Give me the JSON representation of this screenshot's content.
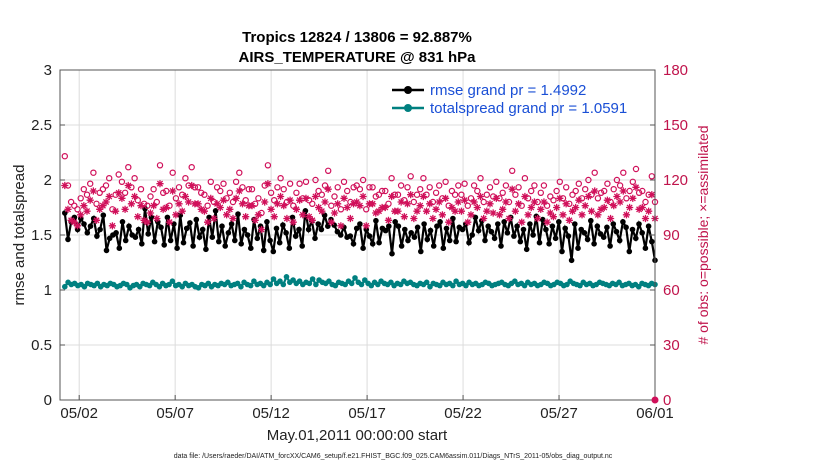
{
  "chart_data": {
    "type": "line",
    "title_line1": "Tropics 12824 / 13806 = 92.887%",
    "title_line2": "AIRS_TEMPERATURE @ 831 hPa",
    "xlabel": "May.01,2011 00:00:00 start",
    "ylabel_left": "rmse and totalspread",
    "ylabel_right": "# of obs: o=possible; ×=assimilated",
    "footnote": "data file: /Users/raeder/DAI/ATM_forcXX/CAM6_setup/f.e21.FHIST_BGC.f09_025.CAM6assim.011/Diags_NTrS_2011-05/obs_diag_output.nc",
    "x_range_days": [
      0,
      31
    ],
    "x_ticks": [
      {
        "day": 1,
        "label": "05/02"
      },
      {
        "day": 6,
        "label": "05/07"
      },
      {
        "day": 11,
        "label": "05/12"
      },
      {
        "day": 16,
        "label": "05/17"
      },
      {
        "day": 21,
        "label": "05/22"
      },
      {
        "day": 26,
        "label": "05/27"
      },
      {
        "day": 31,
        "label": "06/01"
      }
    ],
    "y_left_range": [
      0,
      3
    ],
    "y_left_ticks": [
      "0",
      "0.5",
      "1",
      "1.5",
      "2",
      "2.5",
      "3"
    ],
    "y_right_range": [
      0,
      180
    ],
    "y_right_ticks": [
      "0",
      "30",
      "60",
      "90",
      "120",
      "150",
      "180"
    ],
    "grid": true,
    "legend_position": "top-right",
    "series": [
      {
        "name": "rmse grand pr = 1.4992",
        "color": "#000000",
        "marker": "filled-circle",
        "axis": "left",
        "values": [
          1.7,
          1.46,
          1.62,
          1.66,
          1.55,
          1.65,
          1.6,
          1.52,
          1.58,
          1.65,
          1.49,
          1.55,
          1.68,
          1.36,
          1.47,
          1.5,
          1.52,
          1.38,
          1.62,
          1.45,
          1.58,
          1.5,
          1.48,
          1.55,
          1.42,
          1.74,
          1.51,
          1.66,
          1.44,
          1.62,
          1.57,
          1.41,
          1.66,
          1.45,
          1.6,
          1.38,
          1.68,
          1.43,
          1.56,
          1.61,
          1.4,
          1.64,
          1.48,
          1.55,
          1.37,
          1.66,
          1.48,
          1.72,
          1.44,
          1.58,
          1.4,
          1.52,
          1.6,
          1.45,
          1.69,
          1.42,
          1.55,
          1.5,
          1.38,
          1.64,
          1.47,
          1.58,
          1.36,
          1.62,
          1.45,
          1.35,
          1.56,
          1.43,
          1.59,
          1.52,
          1.38,
          1.66,
          1.49,
          1.55,
          1.4,
          1.72,
          1.55,
          1.63,
          1.47,
          1.6,
          1.55,
          1.68,
          1.58,
          1.64,
          1.59,
          1.53,
          1.5,
          1.57,
          1.48,
          1.49,
          1.42,
          1.56,
          1.6,
          1.38,
          1.55,
          1.49,
          1.42,
          1.63,
          1.43,
          1.56,
          1.54,
          1.58,
          1.33,
          1.62,
          1.58,
          1.4,
          1.55,
          1.45,
          1.52,
          1.48,
          1.57,
          1.35,
          1.6,
          1.46,
          1.54,
          1.4,
          1.58,
          1.62,
          1.38,
          1.56,
          1.45,
          1.65,
          1.44,
          1.57,
          1.55,
          1.6,
          1.43,
          1.5,
          1.66,
          1.54,
          1.63,
          1.45,
          1.58,
          1.53,
          1.47,
          1.6,
          1.4,
          1.62,
          1.52,
          1.66,
          1.49,
          1.58,
          1.44,
          1.55,
          1.37,
          1.6,
          1.5,
          1.67,
          1.43,
          1.64,
          1.55,
          1.42,
          1.58,
          1.47,
          1.62,
          1.35,
          1.56,
          1.49,
          1.27,
          1.6,
          1.38,
          1.55,
          1.52,
          1.46,
          1.63,
          1.42,
          1.58,
          1.51,
          1.48,
          1.57,
          1.4,
          1.6,
          1.53,
          1.45,
          1.62,
          1.57,
          1.35,
          1.55,
          1.47,
          1.6,
          1.52,
          1.38,
          1.58,
          1.44,
          1.27
        ]
      },
      {
        "name": "totalspread grand pr = 1.0591",
        "color": "#008080",
        "marker": "filled-circle",
        "axis": "left",
        "values": [
          1.03,
          1.07,
          1.05,
          1.06,
          1.04,
          1.05,
          1.03,
          1.06,
          1.05,
          1.04,
          1.06,
          1.03,
          1.05,
          1.04,
          1.06,
          1.05,
          1.03,
          1.04,
          1.06,
          1.05,
          1.02,
          1.04,
          1.05,
          1.03,
          1.06,
          1.05,
          1.04,
          1.07,
          1.05,
          1.03,
          1.06,
          1.04,
          1.05,
          1.08,
          1.04,
          1.05,
          1.03,
          1.06,
          1.04,
          1.05,
          1.03,
          1.02,
          1.05,
          1.04,
          1.06,
          1.03,
          1.05,
          1.04,
          1.06,
          1.05,
          1.07,
          1.04,
          1.05,
          1.06,
          1.03,
          1.07,
          1.05,
          1.04,
          1.08,
          1.05,
          1.06,
          1.04,
          1.07,
          1.05,
          1.1,
          1.06,
          1.08,
          1.05,
          1.12,
          1.07,
          1.09,
          1.06,
          1.08,
          1.05,
          1.07,
          1.06,
          1.1,
          1.05,
          1.09,
          1.07,
          1.06,
          1.08,
          1.05,
          1.04,
          1.07,
          1.06,
          1.05,
          1.08,
          1.06,
          1.11,
          1.07,
          1.05,
          1.09,
          1.06,
          1.04,
          1.07,
          1.05,
          1.08,
          1.06,
          1.05,
          1.07,
          1.04,
          1.06,
          1.05,
          1.08,
          1.06,
          1.07,
          1.05,
          1.04,
          1.06,
          1.05,
          1.07,
          1.03,
          1.06,
          1.05,
          1.04,
          1.07,
          1.05,
          1.06,
          1.04,
          1.08,
          1.05,
          1.06,
          1.04,
          1.07,
          1.05,
          1.06,
          1.04,
          1.05,
          1.07,
          1.06,
          1.04,
          1.05,
          1.06,
          1.07,
          1.05,
          1.04,
          1.06,
          1.08,
          1.05,
          1.06,
          1.04,
          1.07,
          1.05,
          1.06,
          1.04,
          1.05,
          1.07,
          1.06,
          1.04,
          1.05,
          1.07,
          1.06,
          1.04,
          1.05,
          1.08,
          1.06,
          1.05,
          1.04,
          1.07,
          1.05,
          1.06,
          1.04,
          1.05,
          1.07,
          1.06,
          1.05,
          1.04,
          1.06,
          1.05,
          1.07,
          1.04,
          1.05,
          1.06,
          1.04,
          1.05,
          1.03,
          1.06,
          1.05,
          1.04,
          1.06,
          1.05
        ]
      },
      {
        "name": "obs possible (o)",
        "color": "#d0105a",
        "marker": "open-circle",
        "axis": "right",
        "values": [
          133,
          117,
          108,
          106,
          104,
          110,
          115,
          112,
          118,
          124,
          107,
          113,
          115,
          117,
          121,
          104,
          112,
          123,
          119,
          113,
          127,
          116,
          121,
          109,
          115,
          107,
          106,
          111,
          115,
          108,
          128,
          113,
          114,
          106,
          124,
          110,
          116,
          112,
          121,
          117,
          127,
          116,
          116,
          113,
          112,
          106,
          119,
          108,
          116,
          114,
          118,
          110,
          113,
          108,
          119,
          124,
          116,
          109,
          115,
          115,
          107,
          110,
          102,
          117,
          128,
          113,
          109,
          116,
          121,
          115,
          108,
          118,
          106,
          113,
          118,
          110,
          119,
          109,
          107,
          120,
          114,
          112,
          117,
          125,
          106,
          111,
          116,
          104,
          119,
          114,
          108,
          116,
          117,
          115,
          120,
          104,
          116,
          116,
          111,
          112,
          114,
          114,
          107,
          121,
          112,
          112,
          117,
          109,
          116,
          122,
          108,
          112,
          115,
          121,
          112,
          116,
          108,
          113,
          117,
          110,
          119,
          106,
          114,
          112,
          117,
          112,
          118,
          106,
          110,
          117,
          114,
          121,
          108,
          112,
          116,
          111,
          119,
          110,
          113,
          117,
          108,
          125,
          112,
          116,
          106,
          121,
          110,
          114,
          117,
          108,
          113,
          117,
          106,
          111,
          109,
          114,
          119,
          110,
          116,
          107,
          112,
          114,
          118,
          110,
          115,
          120,
          112,
          124,
          110,
          113,
          114,
          118,
          108,
          115,
          120,
          117,
          124,
          110,
          114,
          119,
          126,
          113,
          114,
          108,
          112,
          122,
          108
        ]
      },
      {
        "name": "obs assimilated (×)",
        "color": "#d0105a",
        "marker": "asterisk",
        "axis": "right",
        "values": [
          117,
          104,
          98,
          97,
          95,
          101,
          106,
          103,
          109,
          114,
          98,
          104,
          106,
          108,
          111,
          95,
          103,
          113,
          110,
          104,
          117,
          107,
          111,
          100,
          106,
          98,
          97,
          102,
          106,
          99,
          118,
          104,
          105,
          97,
          114,
          101,
          107,
          103,
          111,
          108,
          117,
          107,
          107,
          104,
          103,
          97,
          110,
          99,
          107,
          105,
          109,
          101,
          104,
          99,
          110,
          114,
          107,
          100,
          106,
          106,
          98,
          101,
          93,
          108,
          118,
          104,
          100,
          107,
          111,
          106,
          99,
          109,
          97,
          104,
          109,
          101,
          110,
          100,
          98,
          111,
          105,
          103,
          108,
          115,
          97,
          102,
          107,
          95,
          110,
          105,
          99,
          107,
          108,
          106,
          111,
          95,
          107,
          107,
          102,
          103,
          105,
          105,
          98,
          111,
          103,
          103,
          108,
          100,
          107,
          112,
          99,
          103,
          106,
          111,
          103,
          107,
          99,
          104,
          108,
          101,
          110,
          97,
          105,
          103,
          108,
          103,
          109,
          97,
          101,
          108,
          105,
          111,
          99,
          103,
          107,
          102,
          110,
          101,
          104,
          108,
          99,
          115,
          103,
          107,
          97,
          111,
          101,
          105,
          108,
          99,
          104,
          108,
          97,
          102,
          100,
          105,
          110,
          101,
          107,
          98,
          103,
          105,
          109,
          101,
          106,
          111,
          103,
          114,
          101,
          104,
          105,
          109,
          99,
          106,
          111,
          108,
          114,
          101,
          105,
          110,
          116,
          104,
          105,
          99,
          103,
          112,
          99
        ]
      }
    ]
  }
}
